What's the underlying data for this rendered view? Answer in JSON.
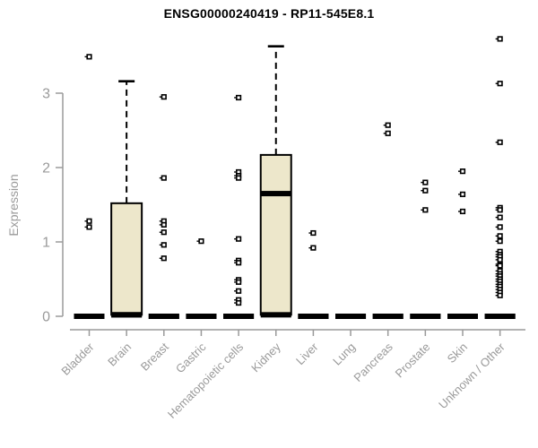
{
  "chart_data": {
    "type": "box",
    "title": "ENSG00000240419 - RP11-545E8.1",
    "ylabel": "Expression",
    "xlabel": "",
    "yticks": [
      0,
      1,
      2,
      3
    ],
    "ylim": [
      -0.1,
      3.85
    ],
    "grid": false,
    "legend": false,
    "categories": [
      "Bladder",
      "Brain",
      "Breast",
      "Gastric",
      "Hematopoietic cells",
      "Kidney",
      "Liver",
      "Lung",
      "Pancreas",
      "Prostate",
      "Skin",
      "Unknown / Other"
    ],
    "boxes": [
      {
        "name": "Bladder",
        "q1": 0,
        "median": 0,
        "q3": 0,
        "whisker_high": 0,
        "outliers": [
          3.49,
          1.28,
          1.2
        ]
      },
      {
        "name": "Brain",
        "q1": 0.02,
        "median": 0.02,
        "q3": 1.52,
        "whisker_high": 3.16,
        "outliers": []
      },
      {
        "name": "Breast",
        "q1": 0,
        "median": 0,
        "q3": 0,
        "whisker_high": 0,
        "outliers": [
          2.95,
          1.86,
          1.28,
          1.23,
          1.13,
          0.96,
          0.78
        ]
      },
      {
        "name": "Gastric",
        "q1": 0,
        "median": 0,
        "q3": 0,
        "whisker_high": 0,
        "outliers": [
          1.01
        ]
      },
      {
        "name": "Hematopoietic cells",
        "q1": 0,
        "median": 0,
        "q3": 0,
        "whisker_high": 0,
        "outliers": [
          2.94,
          1.94,
          1.89,
          1.86,
          1.04,
          0.75,
          0.72,
          0.49,
          0.46,
          0.34,
          0.22,
          0.18
        ]
      },
      {
        "name": "Kidney",
        "q1": 0.02,
        "median": 1.65,
        "q3": 2.17,
        "whisker_high": 3.63,
        "outliers": []
      },
      {
        "name": "Liver",
        "q1": 0,
        "median": 0,
        "q3": 0,
        "whisker_high": 0,
        "outliers": [
          1.12,
          0.92
        ]
      },
      {
        "name": "Lung",
        "q1": 0,
        "median": 0,
        "q3": 0,
        "whisker_high": 0,
        "outliers": []
      },
      {
        "name": "Pancreas",
        "q1": 0,
        "median": 0,
        "q3": 0,
        "whisker_high": 0,
        "outliers": [
          2.57,
          2.46
        ]
      },
      {
        "name": "Prostate",
        "q1": 0,
        "median": 0,
        "q3": 0,
        "whisker_high": 0,
        "outliers": [
          1.8,
          1.69,
          1.43
        ]
      },
      {
        "name": "Skin",
        "q1": 0,
        "median": 0,
        "q3": 0,
        "whisker_high": 0,
        "outliers": [
          1.95,
          1.64,
          1.41
        ]
      },
      {
        "name": "Unknown / Other",
        "q1": 0,
        "median": 0,
        "q3": 0,
        "whisker_high": 0,
        "outliers": [
          3.73,
          3.13,
          2.34,
          1.46,
          1.43,
          1.33,
          1.2,
          1.08,
          1.01,
          0.87,
          0.83,
          0.8,
          0.76,
          0.7,
          0.68,
          0.61,
          0.57,
          0.54,
          0.5,
          0.47,
          0.43,
          0.4,
          0.36,
          0.32,
          0.28
        ]
      }
    ],
    "colors": {
      "box_fill": "#EDE7CB",
      "box_border": "#000000",
      "median": "#000000",
      "axis": "#9A9A9A",
      "labels": "#9A9A9A",
      "title": "#000000",
      "outlier_fill": "#FFFFFF",
      "background": "#FFFFFF"
    }
  }
}
